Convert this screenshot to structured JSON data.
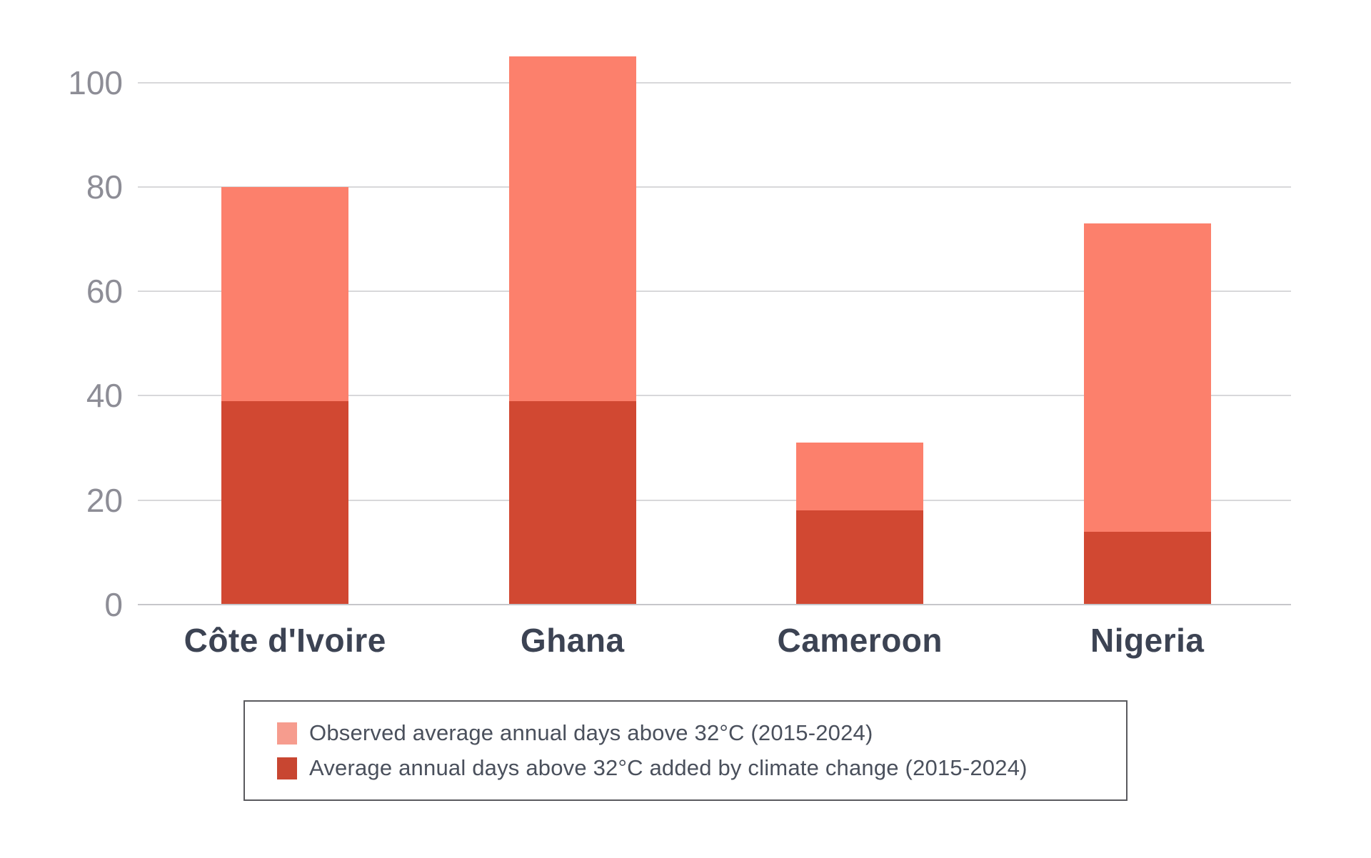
{
  "chart_data": {
    "type": "bar",
    "subtype": "overlaid",
    "title": "",
    "xlabel": "",
    "ylabel": "",
    "categories": [
      "Côte d'Ivoire",
      "Ghana",
      "Cameroon",
      "Nigeria"
    ],
    "series": [
      {
        "key": "observed",
        "name": "Observed average annual days above 32°C (2015-2024)",
        "color": "#fc806c",
        "legend_color": "#f69c8e",
        "values": [
          80,
          105,
          31,
          73
        ]
      },
      {
        "key": "added-by-climate-change",
        "name": "Average annual days above 32°C added by climate change (2015-2024)",
        "color": "#d14832",
        "legend_color": "#c84631",
        "values": [
          39,
          39,
          18,
          14
        ]
      }
    ],
    "yticks": [
      0,
      20,
      40,
      60,
      80,
      100
    ],
    "ylim": [
      0,
      108
    ],
    "grid": true,
    "legend_position": "bottom"
  },
  "colors": {
    "background": "#ffffff",
    "gridline": "#d8d8da",
    "axis_line": "#c6c6ca",
    "tick_label": "#8d8d96",
    "category_label": "#3c4353",
    "legend_text": "#4a505c",
    "legend_border": "#5a5a5e"
  }
}
